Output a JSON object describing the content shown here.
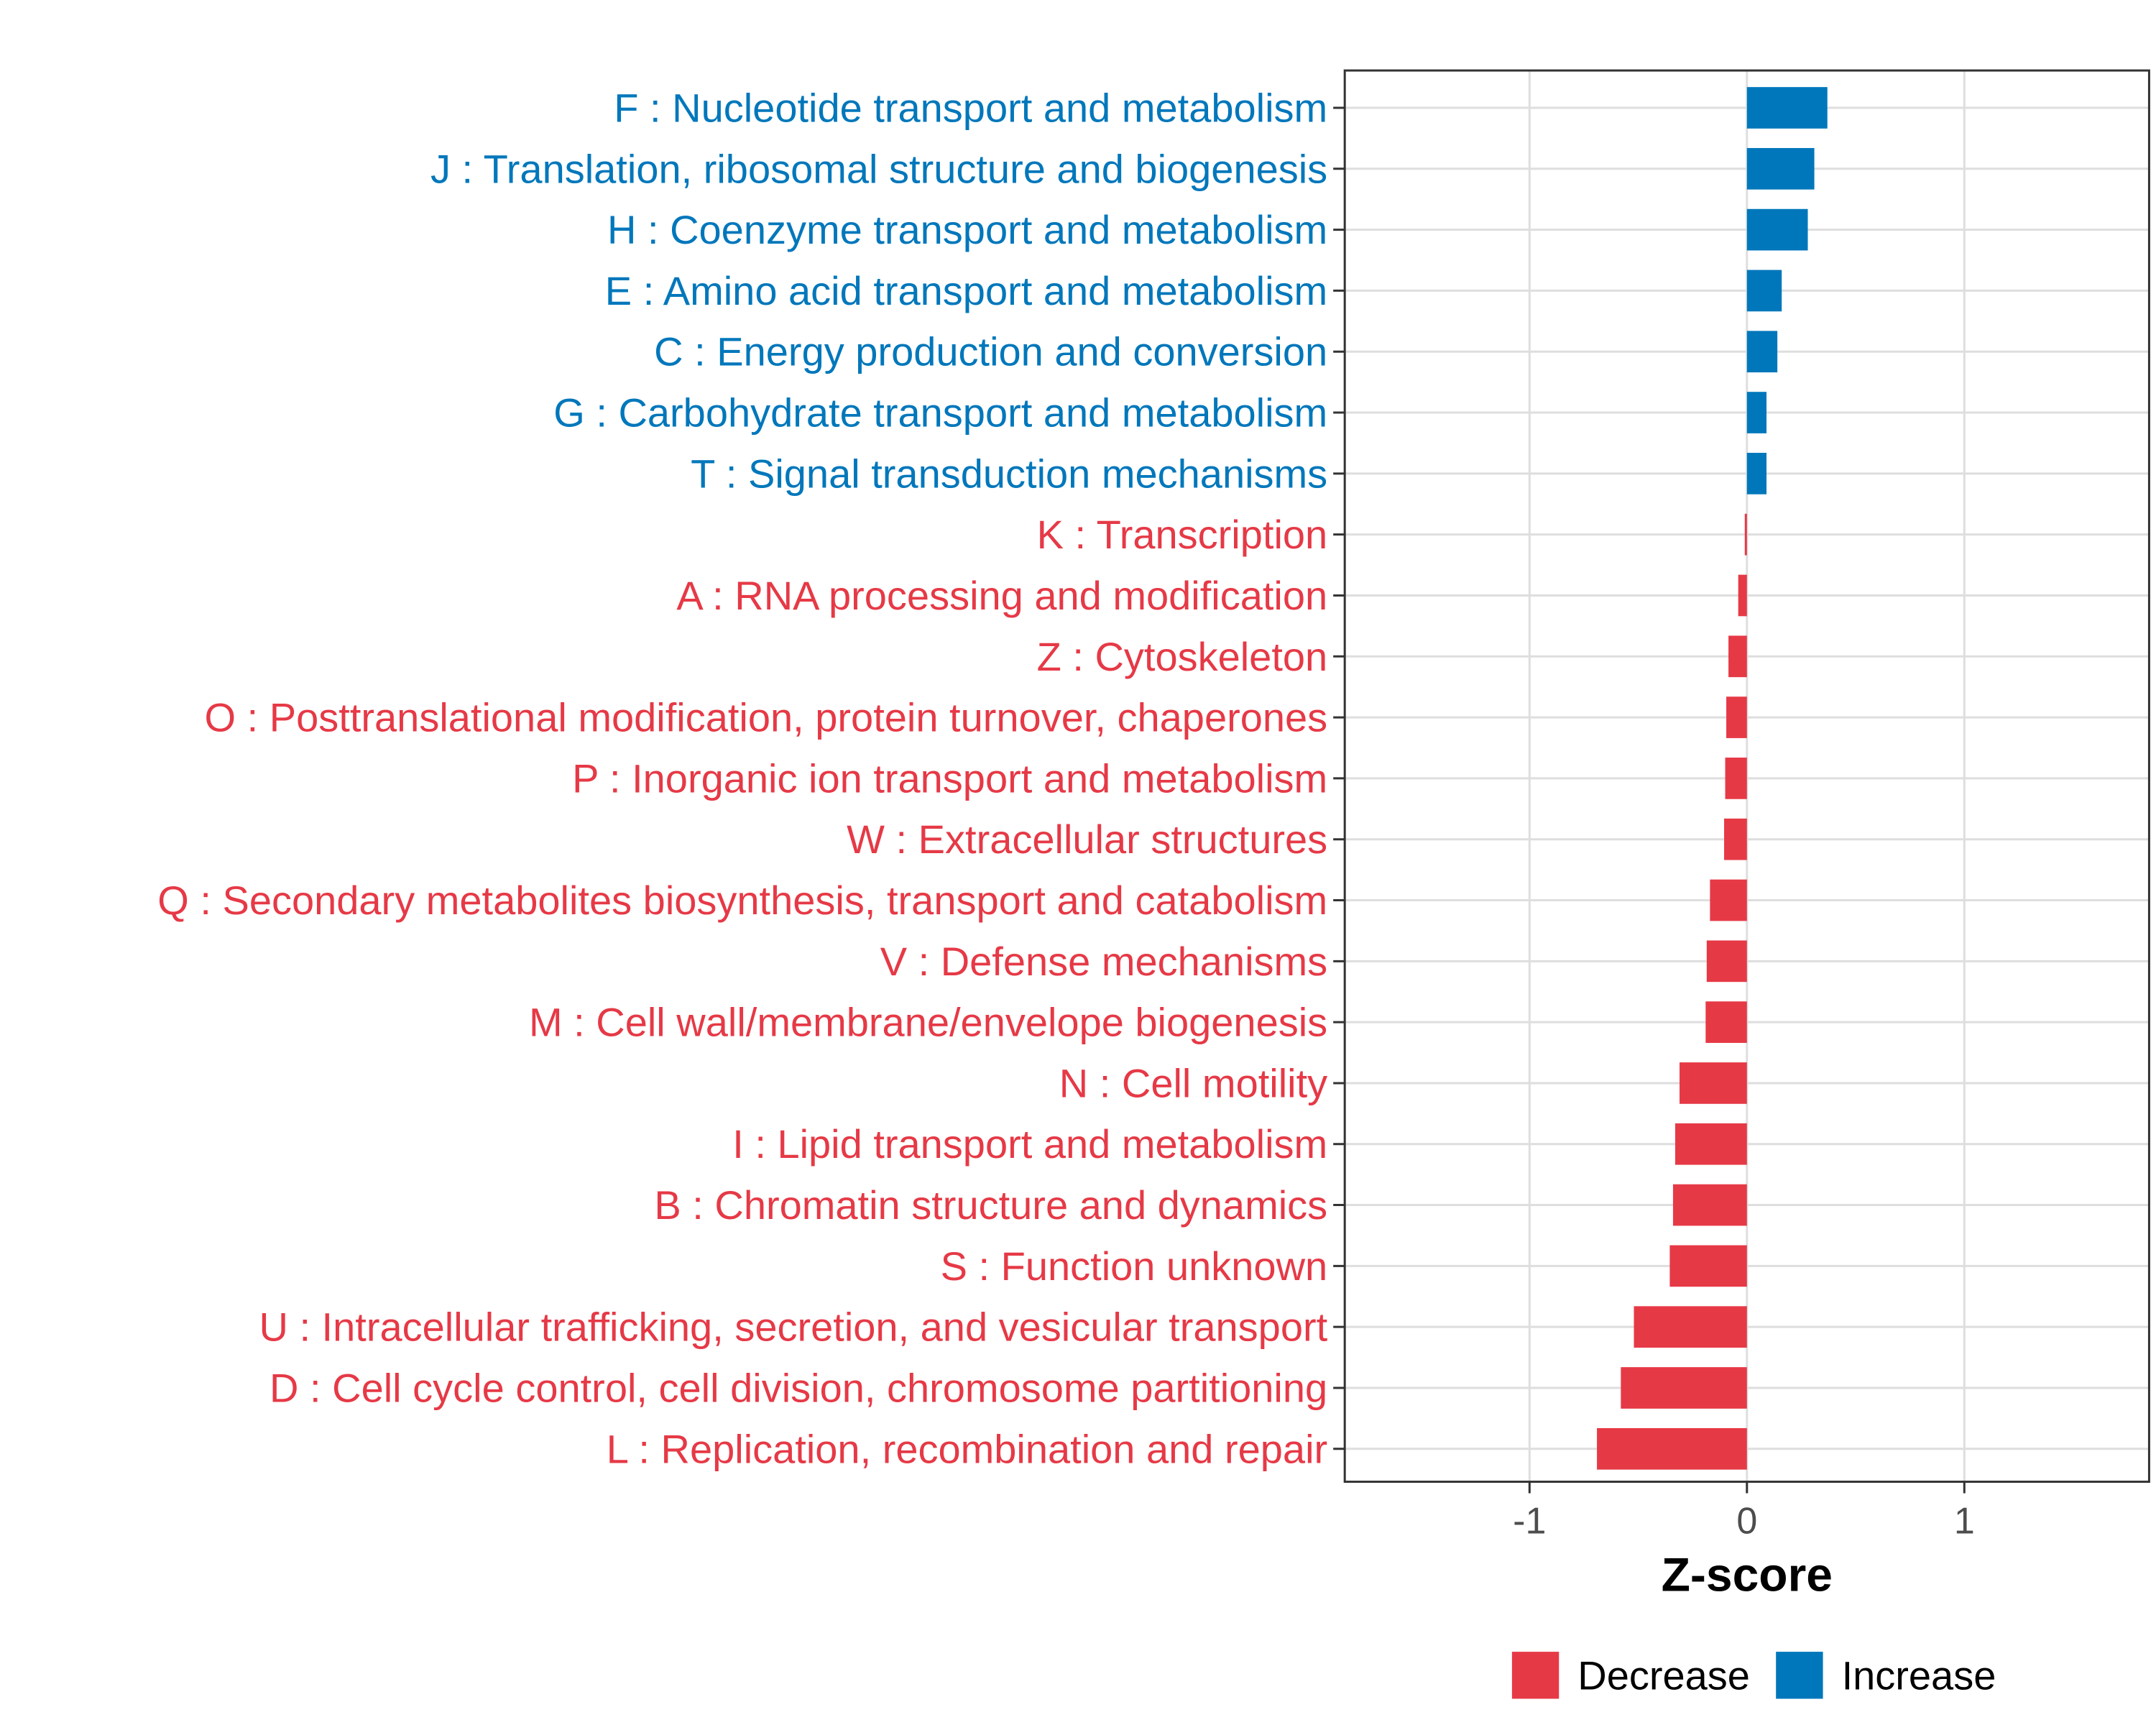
{
  "chart_data": {
    "type": "bar",
    "orientation": "horizontal",
    "categories": [
      "F : Nucleotide transport and metabolism",
      "J : Translation, ribosomal structure and biogenesis",
      "H : Coenzyme transport and metabolism",
      "E : Amino acid transport and metabolism",
      "C : Energy production and conversion",
      "G : Carbohydrate transport and metabolism",
      "T : Signal transduction mechanisms",
      "K : Transcription",
      "A : RNA processing and modification",
      "Z : Cytoskeleton",
      "O : Posttranslational modification, protein turnover, chaperones",
      "P : Inorganic ion transport and metabolism",
      "W : Extracellular structures",
      "Q : Secondary metabolites biosynthesis, transport and catabolism",
      "V : Defense mechanisms",
      "M : Cell wall/membrane/envelope biogenesis",
      "N : Cell motility",
      "I : Lipid transport and metabolism",
      "B : Chromatin structure and dynamics",
      "S : Function unknown",
      "U : Intracellular trafficking, secretion, and vesicular transport",
      "D : Cell cycle control, cell division, chromosome partitioning",
      "L : Replication, recombination and repair"
    ],
    "values": [
      0.37,
      0.31,
      0.28,
      0.16,
      0.14,
      0.09,
      0.09,
      -0.01,
      -0.04,
      -0.085,
      -0.095,
      -0.1,
      -0.105,
      -0.17,
      -0.185,
      -0.19,
      -0.31,
      -0.33,
      -0.34,
      -0.355,
      -0.52,
      -0.58,
      -0.69
    ],
    "groups": [
      "Increase",
      "Increase",
      "Increase",
      "Increase",
      "Increase",
      "Increase",
      "Increase",
      "Decrease",
      "Decrease",
      "Decrease",
      "Decrease",
      "Decrease",
      "Decrease",
      "Decrease",
      "Decrease",
      "Decrease",
      "Decrease",
      "Decrease",
      "Decrease",
      "Decrease",
      "Decrease",
      "Decrease",
      "Decrease"
    ],
    "xlabel": "Z-score",
    "ylabel": "",
    "xlim": [
      -1.85,
      1.85
    ],
    "xticks": [
      -1,
      0,
      1
    ],
    "xtick_labels": [
      "-1",
      "0",
      "1"
    ],
    "grid": true,
    "legend": {
      "placement": "bottom",
      "entries": [
        {
          "name": "Decrease",
          "color": "#E63946"
        },
        {
          "name": "Increase",
          "color": "#0077BB"
        }
      ]
    }
  },
  "colors": {
    "Decrease": "#E63946",
    "Increase": "#0077BB",
    "grid": "#dedede",
    "axis_text": "#4d4d4d"
  }
}
